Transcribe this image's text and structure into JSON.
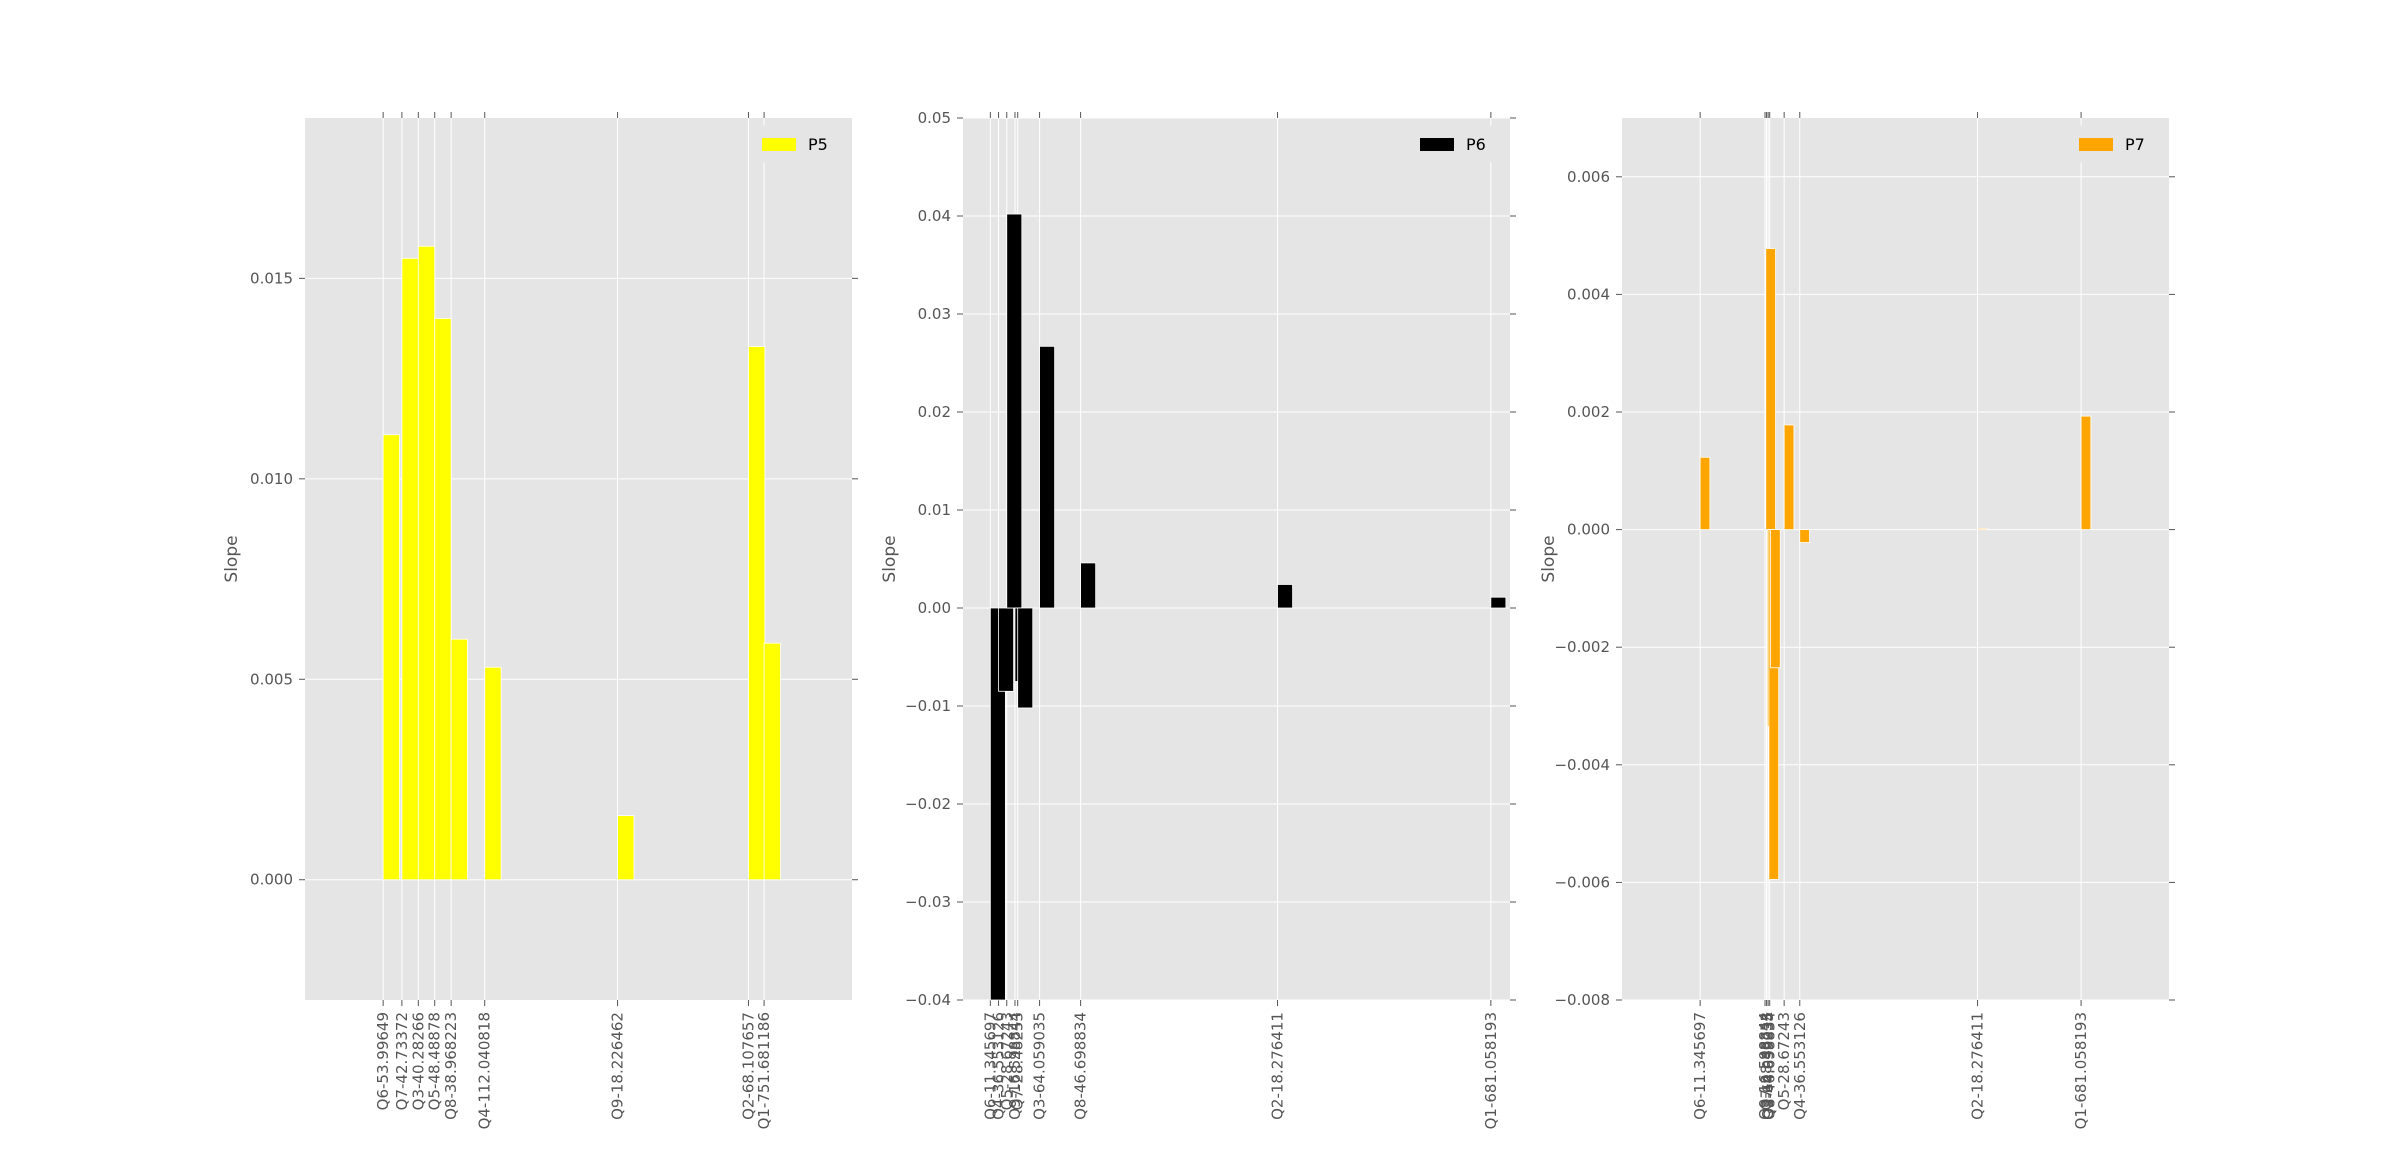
{
  "chart_data": [
    {
      "type": "bar",
      "ylabel": "Slope",
      "ylim": [
        -0.003,
        0.019
      ],
      "yticks": [
        "0.000",
        "0.005",
        "0.010",
        "0.015"
      ],
      "ytick_values": [
        0.0,
        0.005,
        0.01,
        0.015
      ],
      "xlim": [
        -2.0,
        12.0
      ],
      "grid": true,
      "legend_position": "top-right",
      "series": [
        {
          "name": "P5",
          "color": "#ffff00"
        }
      ],
      "bars": [
        {
          "x": 0.0,
          "w": 0.42,
          "value": 0.0111
        },
        {
          "x": 0.48,
          "w": 0.42,
          "value": 0.0155
        },
        {
          "x": 0.9,
          "w": 0.42,
          "value": 0.0158
        },
        {
          "x": 1.32,
          "w": 0.42,
          "value": 0.014
        },
        {
          "x": 1.74,
          "w": 0.42,
          "value": 0.006
        },
        {
          "x": 2.6,
          "w": 0.42,
          "value": 0.0053
        },
        {
          "x": 6.0,
          "w": 0.42,
          "value": 0.0016
        },
        {
          "x": 9.35,
          "w": 0.42,
          "value": 0.0133
        },
        {
          "x": 9.75,
          "w": 0.42,
          "value": 0.0059
        }
      ],
      "xticks": [
        {
          "x": 0.0,
          "label": "Q6-53.99649"
        },
        {
          "x": 0.48,
          "label": "Q7-42.73372"
        },
        {
          "x": 0.9,
          "label": "Q3-40.28266"
        },
        {
          "x": 1.32,
          "label": "Q5-48.48878"
        },
        {
          "x": 1.74,
          "label": "Q8-38.968223"
        },
        {
          "x": 2.6,
          "label": "Q4-112.040818"
        },
        {
          "x": 6.0,
          "label": "Q9-18.226462"
        },
        {
          "x": 9.35,
          "label": "Q2-68.107657"
        },
        {
          "x": 9.75,
          "label": "Q1-751.681186"
        }
      ]
    },
    {
      "type": "bar",
      "ylabel": "Slope",
      "ylim": [
        -0.04,
        0.05
      ],
      "yticks": [
        "−0.04",
        "−0.03",
        "−0.02",
        "−0.01",
        "0.00",
        "0.01",
        "0.02",
        "0.03",
        "0.04",
        "0.05"
      ],
      "ytick_values": [
        -0.04,
        -0.03,
        -0.02,
        -0.01,
        0.0,
        0.01,
        0.02,
        0.03,
        0.04,
        0.05
      ],
      "xlim": [
        -1.0,
        19.0
      ],
      "grid": true,
      "legend_position": "top-right",
      "series": [
        {
          "name": "P6",
          "color": "#000000"
        }
      ],
      "bars": [
        {
          "x": 0.0,
          "w": 0.55,
          "value": -0.04
        },
        {
          "x": 0.3,
          "w": 0.55,
          "value": -0.0085
        },
        {
          "x": 0.6,
          "w": 0.55,
          "value": 0.0402
        },
        {
          "x": 0.9,
          "w": 0.55,
          "value": -0.0075
        },
        {
          "x": 1.0,
          "w": 0.55,
          "value": -0.0102
        },
        {
          "x": 1.8,
          "w": 0.55,
          "value": 0.0267
        },
        {
          "x": 3.3,
          "w": 0.55,
          "value": 0.0046
        },
        {
          "x": 10.5,
          "w": 0.55,
          "value": 0.0024
        },
        {
          "x": 18.3,
          "w": 0.55,
          "value": 0.0011
        }
      ],
      "xticks": [
        {
          "x": 0.0,
          "label": "Q6-11.345697"
        },
        {
          "x": 0.3,
          "label": "Q4-36.553126"
        },
        {
          "x": 0.6,
          "label": "Q5-28.67243"
        },
        {
          "x": 0.9,
          "label": "Q9-16.598844"
        },
        {
          "x": 1.0,
          "label": "Q7-28.48253"
        },
        {
          "x": 1.8,
          "label": "Q3-64.059035"
        },
        {
          "x": 3.3,
          "label": "Q8-46.698834"
        },
        {
          "x": 10.5,
          "label": "Q2-18.276411"
        },
        {
          "x": 18.3,
          "label": "Q1-681.058193"
        }
      ]
    },
    {
      "type": "bar",
      "ylabel": "Slope",
      "ylim": [
        -0.008,
        0.007
      ],
      "yticks": [
        "−0.008",
        "−0.006",
        "−0.004",
        "−0.002",
        "0.000",
        "0.002",
        "0.004",
        "0.006"
      ],
      "ytick_values": [
        -0.008,
        -0.006,
        -0.004,
        -0.002,
        0.0,
        0.002,
        0.004,
        0.006
      ],
      "xlim": [
        -2.0,
        12.0
      ],
      "grid": true,
      "legend_position": "top-right",
      "series": [
        {
          "name": "P7",
          "color": "#ffa500"
        }
      ],
      "bars": [
        {
          "x": 0.0,
          "w": 0.25,
          "value": 0.00123
        },
        {
          "x": 1.68,
          "w": 0.25,
          "value": 0.00478
        },
        {
          "x": 1.72,
          "w": 0.25,
          "value": -0.00335
        },
        {
          "x": 1.76,
          "w": 0.25,
          "value": -0.00595
        },
        {
          "x": 1.8,
          "w": 0.25,
          "value": -0.00235
        },
        {
          "x": 2.15,
          "w": 0.25,
          "value": 0.00178
        },
        {
          "x": 2.55,
          "w": 0.25,
          "value": -0.00022
        },
        {
          "x": 7.1,
          "w": 0.25,
          "value": 2e-05
        },
        {
          "x": 9.75,
          "w": 0.25,
          "value": 0.00193
        }
      ],
      "xticks": [
        {
          "x": 0.0,
          "label": "Q6-11.345697"
        },
        {
          "x": 1.66,
          "label": "Q9-16.598844"
        },
        {
          "x": 1.7,
          "label": "Q7-28.48253"
        },
        {
          "x": 1.74,
          "label": "Q3-64.059035"
        },
        {
          "x": 1.78,
          "label": "Q8-46.698834"
        },
        {
          "x": 2.15,
          "label": "Q5-28.67243"
        },
        {
          "x": 2.55,
          "label": "Q4-36.553126"
        },
        {
          "x": 7.1,
          "label": "Q2-18.276411"
        },
        {
          "x": 9.75,
          "label": "Q1-681.058193"
        }
      ]
    }
  ]
}
